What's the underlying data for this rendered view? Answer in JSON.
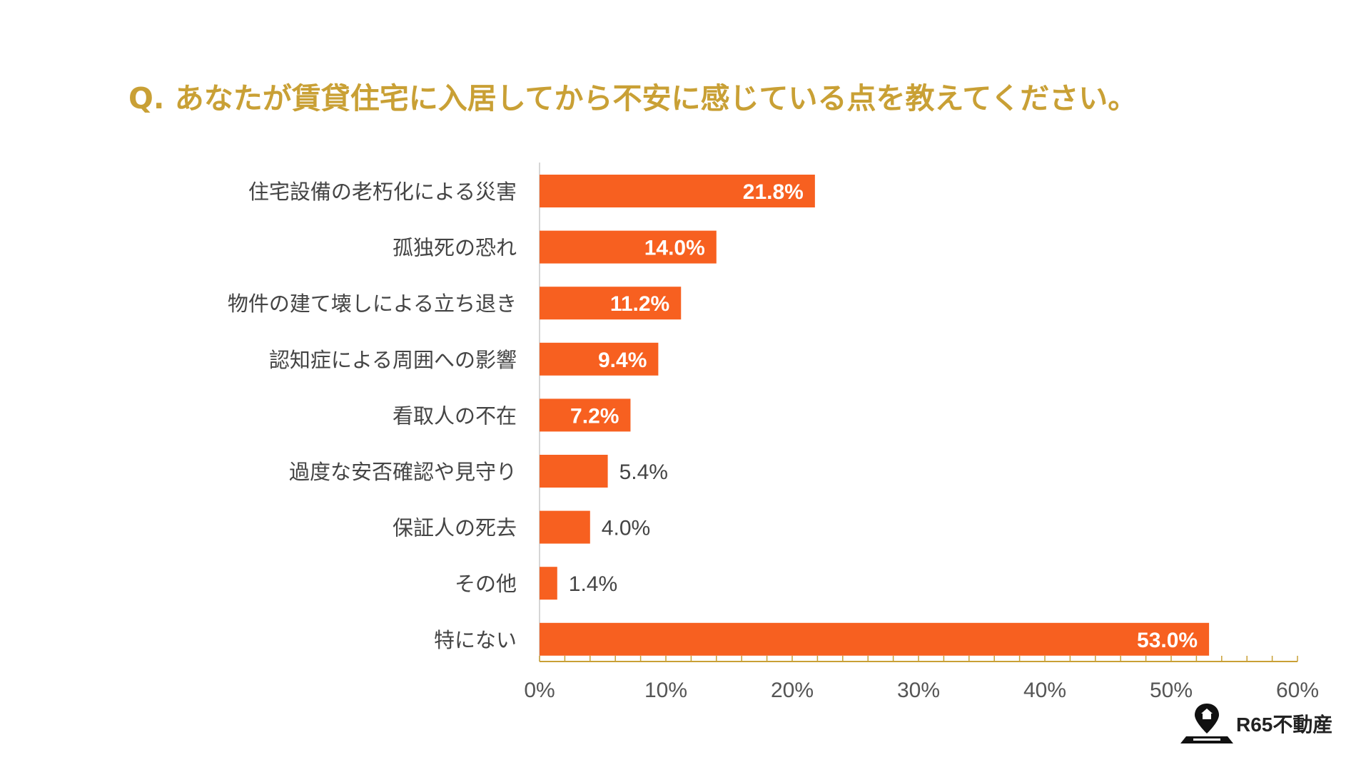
{
  "title": "Q. あなたが賃貸住宅に入居してから不安に感じている点を教えてください。",
  "brand": "R65不動産",
  "colors": {
    "title": "#c9a035",
    "bar": "#f76020",
    "axis": "#c9a035",
    "label": "#444444",
    "tick": "#555555"
  },
  "chart_data": {
    "type": "bar",
    "orientation": "horizontal",
    "categories": [
      "住宅設備の老朽化による災害",
      "孤独死の恐れ",
      "物件の建て壊しによる立ち退き",
      "認知症による周囲への影響",
      "看取人の不在",
      "過度な安否確認や見守り",
      "保証人の死去",
      "その他",
      "特にない"
    ],
    "values": [
      21.8,
      14.0,
      11.2,
      9.4,
      7.2,
      5.4,
      4.0,
      1.4,
      53.0
    ],
    "value_labels": [
      "21.8%",
      "14.0%",
      "11.2%",
      "9.4%",
      "7.2%",
      "5.4%",
      "4.0%",
      "1.4%",
      "53.0%"
    ],
    "xlim": [
      0,
      60
    ],
    "xticks": [
      0,
      10,
      20,
      30,
      40,
      50,
      60
    ],
    "xtick_labels": [
      "0%",
      "10%",
      "20%",
      "30%",
      "40%",
      "50%",
      "60%"
    ],
    "xlabel": "",
    "ylabel": "",
    "grid": false
  }
}
